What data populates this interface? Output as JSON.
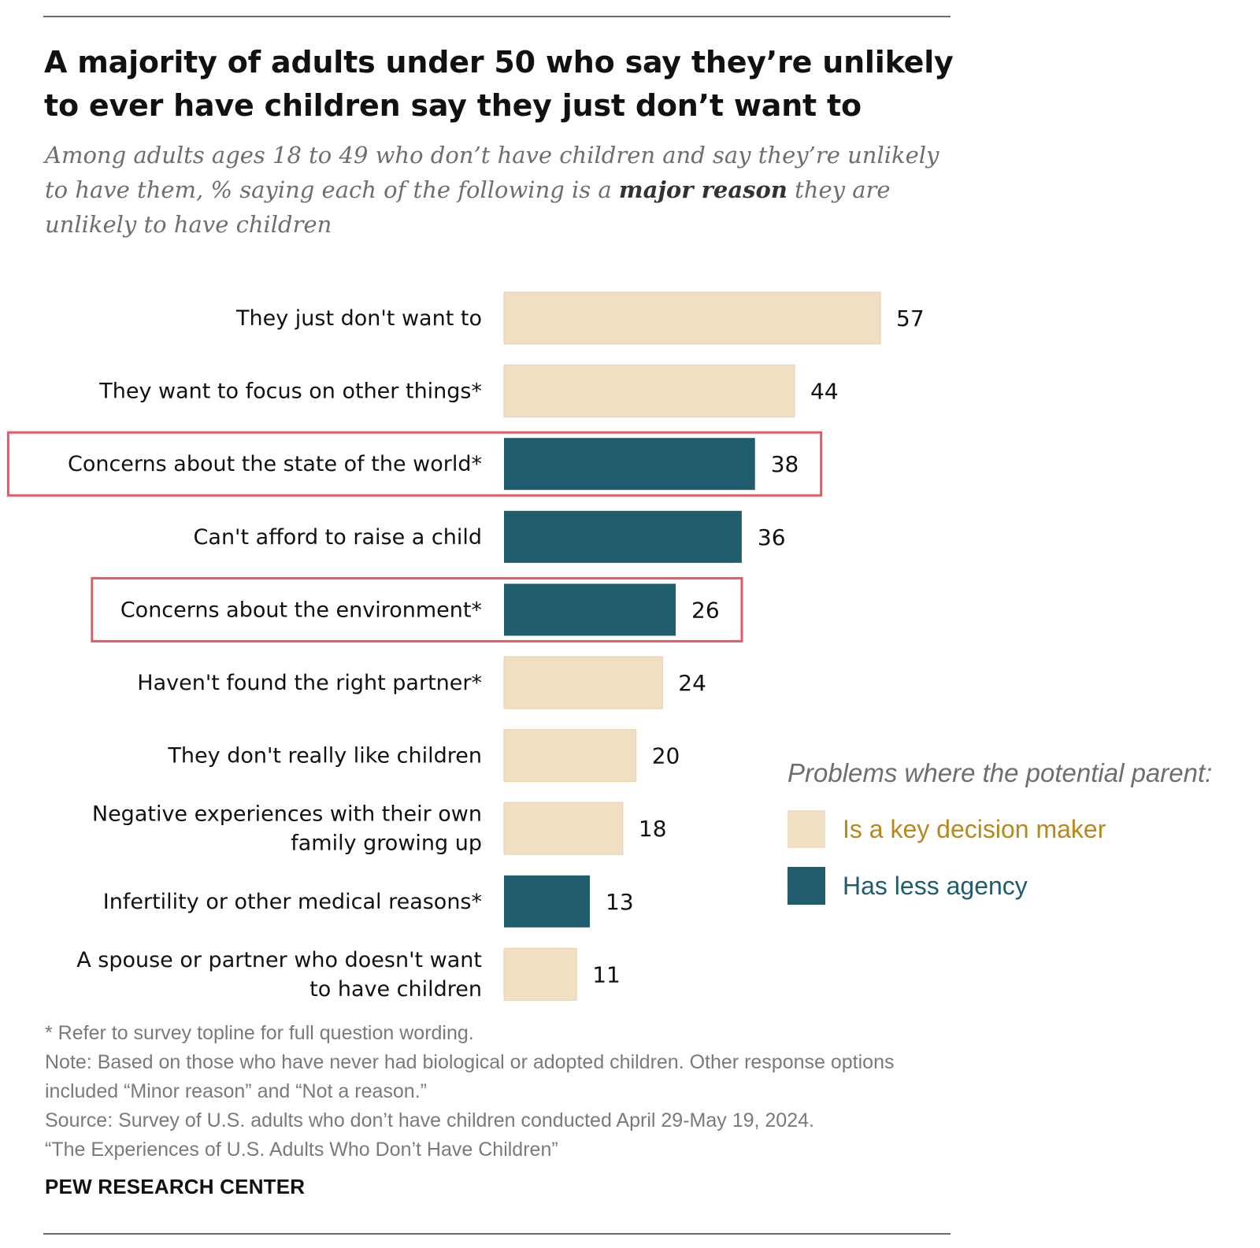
{
  "title": "A majority of adults under 50 who say they’re unlikely to ever have children say they just don’t want to",
  "subtitle": {
    "before": "Among adults ages 18 to 49 who don’t have children and say they’re unlikely to have them, % saying each of the following is a ",
    "emphasis": "major reason",
    "after": " they are unlikely to have children"
  },
  "chart_data": {
    "type": "bar",
    "orientation": "horizontal",
    "categories": [
      "They just don't want to",
      "They want to focus on other things*",
      "Concerns about the state of the world*",
      "Can't afford to raise a child",
      "Concerns about the environment*",
      "Haven't found the right partner*",
      "They don't really like children",
      "Negative experiences with their own family growing up",
      "Infertility or other medical reasons*",
      "A spouse or partner who doesn't want to have children"
    ],
    "category_lines": [
      [
        "They just don't want to"
      ],
      [
        "They want to focus on other things*"
      ],
      [
        "Concerns about the state of the world*"
      ],
      [
        "Can't afford to raise a child"
      ],
      [
        "Concerns about the environment*"
      ],
      [
        "Haven't found the right partner*"
      ],
      [
        "They don't really like children"
      ],
      [
        "Negative experiences with their own",
        "family growing up"
      ],
      [
        "Infertility or other medical reasons*"
      ],
      [
        "A spouse or partner who doesn't want",
        "to have children"
      ]
    ],
    "values": [
      57,
      44,
      38,
      36,
      26,
      24,
      20,
      18,
      13,
      11
    ],
    "groups": [
      "key",
      "key",
      "agency",
      "agency",
      "agency",
      "key",
      "key",
      "key",
      "agency",
      "key"
    ],
    "highlighted": [
      false,
      false,
      true,
      false,
      true,
      false,
      false,
      false,
      false,
      false
    ],
    "colors": {
      "key": "#f0dfc2",
      "agency": "#1f5c6e",
      "highlight_outline": "#e05a6a"
    },
    "xlim": [
      0,
      57
    ],
    "grid": false,
    "legend_position": "right"
  },
  "legend": {
    "title": "Problems where the potential parent:",
    "items": [
      {
        "label": "Is a key decision maker",
        "color": "#f0dfc2",
        "text_color": "#b9881b"
      },
      {
        "label": "Has less agency",
        "color": "#1f5c6e",
        "text_color": "#1f5c6e"
      }
    ]
  },
  "notes": [
    "* Refer to survey topline for full question wording.",
    "Note: Based on those who have never had biological or adopted children. Other response options included “Minor reason” and “Not a reason.”",
    "Source: Survey of U.S. adults who don’t have children conducted April 29-May 19, 2024.",
    "“The Experiences of U.S. Adults Who Don’t Have Children”"
  ],
  "brand": "PEW RESEARCH CENTER"
}
